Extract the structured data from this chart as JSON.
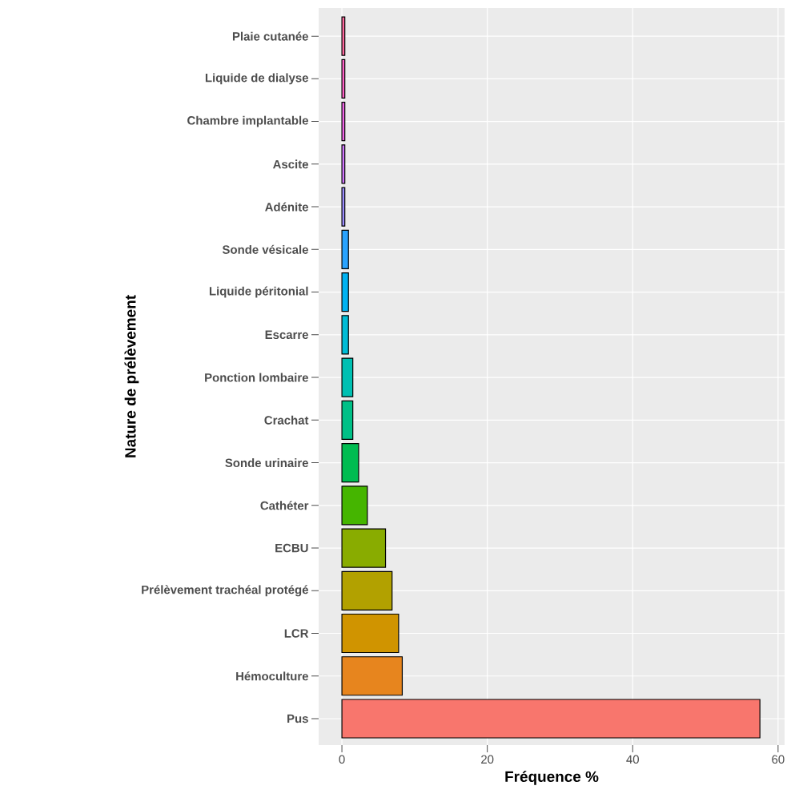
{
  "chart_data": {
    "type": "bar",
    "orientation": "horizontal",
    "xlabel": "Fréquence %",
    "ylabel": "Nature de prélèvement",
    "categories": [
      "Plaie cutanée",
      "Liquide de dialyse",
      "Chambre implantable",
      "Ascite",
      "Adénite",
      "Sonde vésicale",
      "Liquide péritonial",
      "Escarre",
      "Ponction lombaire",
      "Crachat",
      "Sonde urinaire",
      "Cathéter",
      "ECBU",
      "Prélèvement trachéal protégé",
      "LCR",
      "Hémoculture",
      "Pus"
    ],
    "values": [
      0.4,
      0.4,
      0.4,
      0.4,
      0.4,
      0.9,
      0.9,
      0.9,
      1.5,
      1.5,
      2.3,
      3.5,
      6.0,
      6.9,
      7.8,
      8.3,
      57.5
    ],
    "colors": [
      "#FF689E",
      "#FF61C7",
      "#F166E8",
      "#D277FF",
      "#9C8DFF",
      "#29A3FF",
      "#00B3F2",
      "#00BCD6",
      "#00C0B2",
      "#00C087",
      "#00BC51",
      "#45B500",
      "#89AC00",
      "#B2A100",
      "#D09400",
      "#E7851E",
      "#F8766D"
    ],
    "xlim": [
      -3.2,
      60.9
    ],
    "xticks": [
      0,
      20,
      40,
      60
    ],
    "grid": true
  }
}
